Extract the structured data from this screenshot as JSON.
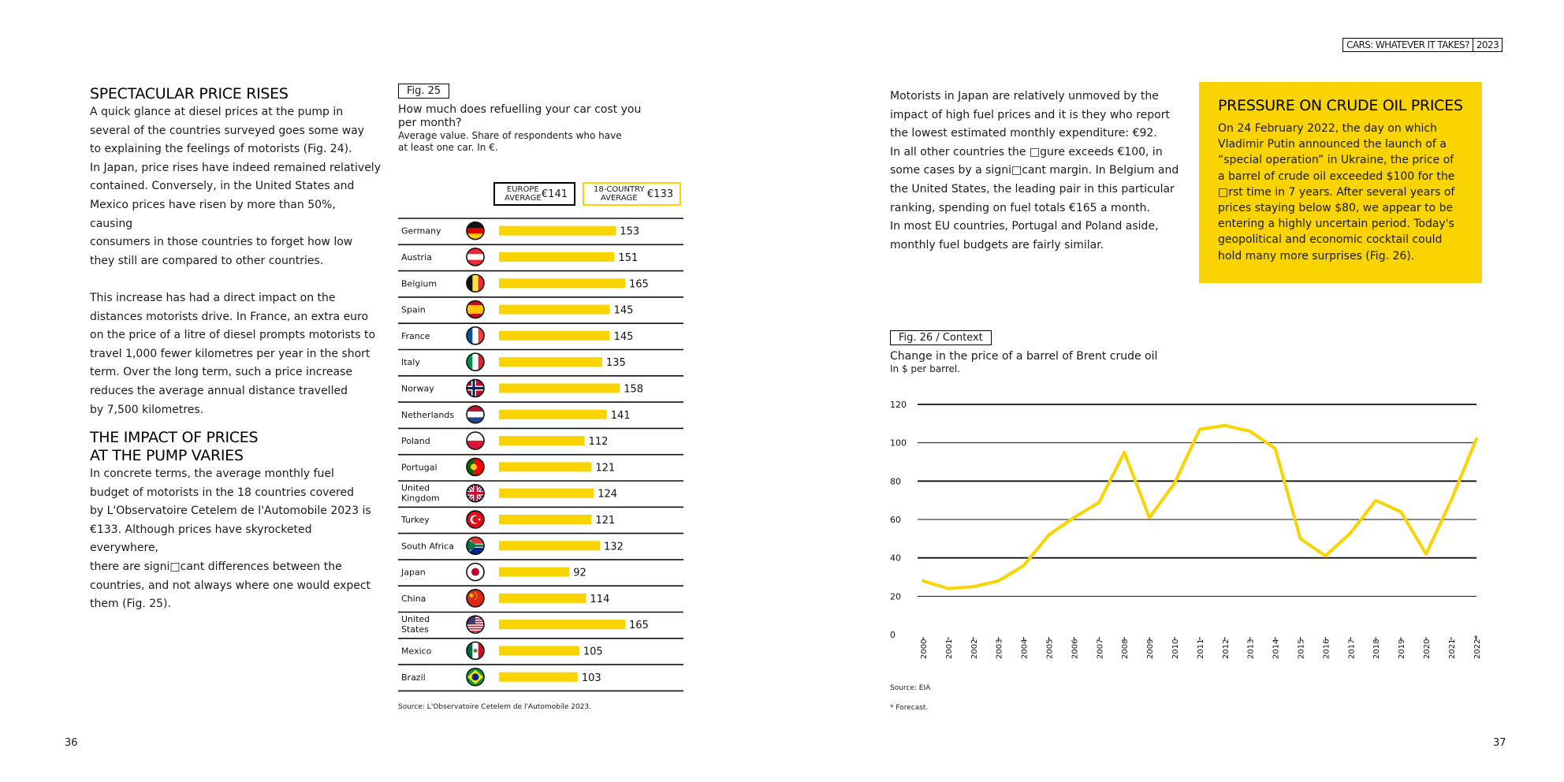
{
  "header": {
    "title": "CARS: WHATEVER IT TAKES?",
    "year": "2023"
  },
  "left": {
    "heading1": "SPECTACULAR PRICE RISES",
    "para1": [
      "A quick glance at diesel prices at the pump in",
      "several of the countries surveyed goes some way",
      "to explaining the feelings of motorists (Fig. 24).",
      "In Japan, price rises have indeed remained relatively",
      "contained. Conversely, in the United States and",
      "Mexico prices have risen by more than 50%, causing",
      "consumers in those countries to forget how low",
      "they still are compared to other countries."
    ],
    "para2": [
      "This increase has had a direct impact on the",
      "distances motorists drive. In France, an extra euro",
      "on the price of a litre of diesel prompts motorists to",
      "travel 1,000 fewer kilometres per year in the short",
      "term. Over the long term, such a price increase",
      "reduces the average annual distance travelled",
      "by 7,500 kilometres."
    ],
    "heading2": [
      "THE IMPACT OF PRICES",
      "AT THE PUMP VARIES"
    ],
    "para3": [
      "In concrete terms, the average monthly fuel",
      "budget of motorists in the 18 countries covered",
      "by L'Observatoire Cetelem de l'Automobile 2023 is",
      "€133. Although prices have skyrocketed everywhere,",
      "there are signi□cant differences between the",
      "countries, and not always where one would expect",
      "them (Fig. 25)."
    ]
  },
  "fig25": {
    "label": "Fig. 25",
    "title": [
      "How much does refuelling your car cost you",
      "per month?"
    ],
    "subtitle": [
      "Average value. Share of respondents who have",
      "at least one car. In €."
    ],
    "legend": [
      {
        "text": [
          "EUROPE",
          "AVERAGE"
        ],
        "value": "€141"
      },
      {
        "text": [
          "18-COUNTRY",
          "AVERAGE"
        ],
        "value": "€133"
      }
    ],
    "source": "Source: L'Observatoire Cetelem de l'Automobile 2023."
  },
  "right": {
    "para": [
      "Motorists in Japan are relatively unmoved by the",
      "impact of high fuel prices and it is they who report",
      "the lowest estimated monthly expenditure: €92.",
      "In all other countries the □gure exceeds €100, in",
      "some cases by a signi□cant margin. In Belgium and",
      "the United States, the leading pair in this particular",
      "ranking, spending on fuel totals €165 a month.",
      "In most EU countries, Portugal and Poland aside,",
      "monthly fuel budgets are fairly similar."
    ]
  },
  "callout": {
    "title": "PRESSURE ON CRUDE OIL PRICES",
    "lines": [
      "On 24 February 2022, the day on which",
      "Vladimir Putin announced the launch of a",
      "“special operation” in Ukraine, the price of",
      "a barrel of crude oil exceeded $100 for the",
      "□rst time in 7 years. After several years of",
      "prices staying below $80, we appear to be",
      "entering a highly uncertain period. Today's",
      "geopolitical and economic cocktail could",
      "hold many more surprises (Fig. 26)."
    ]
  },
  "fig26": {
    "label": "Fig. 26 / Context",
    "title": "Change in the price of a barrel of Brent crude oil",
    "subtitle": "In $ per barrel.",
    "source": "Source: EIA",
    "footnote": "* Forecast."
  },
  "pages": {
    "left": "36",
    "right": "37"
  },
  "chart_data": [
    {
      "type": "bar",
      "orientation": "horizontal",
      "categories": [
        "Germany",
        "Austria",
        "Belgium",
        "Spain",
        "France",
        "Italy",
        "Norway",
        "Netherlands",
        "Poland",
        "Portugal",
        "United Kingdom",
        "Turkey",
        "South Africa",
        "Japan",
        "China",
        "United States",
        "Mexico",
        "Brazil"
      ],
      "values": [
        153,
        151,
        165,
        145,
        145,
        135,
        158,
        141,
        112,
        121,
        124,
        121,
        132,
        92,
        114,
        165,
        105,
        103
      ],
      "flags": [
        "germany-flag",
        "austria-flag",
        "belgium-flag",
        "spain-flag",
        "france-flag",
        "italy-flag",
        "norway-flag",
        "netherlands-flag",
        "poland-flag",
        "portugal-flag",
        "united-kingdom-flag",
        "turkey-flag",
        "south-africa-flag",
        "japan-flag",
        "china-flag",
        "united-states-flag",
        "mexico-flag",
        "brazil-flag"
      ],
      "bar_color": "#f9d400",
      "xlim": [
        0,
        200
      ]
    },
    {
      "type": "line",
      "x": [
        "2000",
        "2001",
        "2002",
        "2003",
        "2004",
        "2005",
        "2006",
        "2007",
        "2008",
        "2009",
        "2010",
        "2011",
        "2012",
        "2013",
        "2014",
        "2015",
        "2016",
        "2017",
        "2018",
        "2019",
        "2020",
        "2021",
        "2022*"
      ],
      "series": [
        {
          "values": [
            28,
            24,
            25,
            28,
            36,
            52,
            61,
            69,
            95,
            61,
            79,
            107,
            109,
            106,
            97,
            50,
            41,
            53,
            70,
            64,
            42,
            70,
            102
          ]
        }
      ],
      "ylim": [
        0,
        120
      ],
      "yticks": [
        0,
        20,
        40,
        60,
        80,
        100,
        120
      ],
      "line_color": "#f9d400",
      "grid": true
    }
  ]
}
